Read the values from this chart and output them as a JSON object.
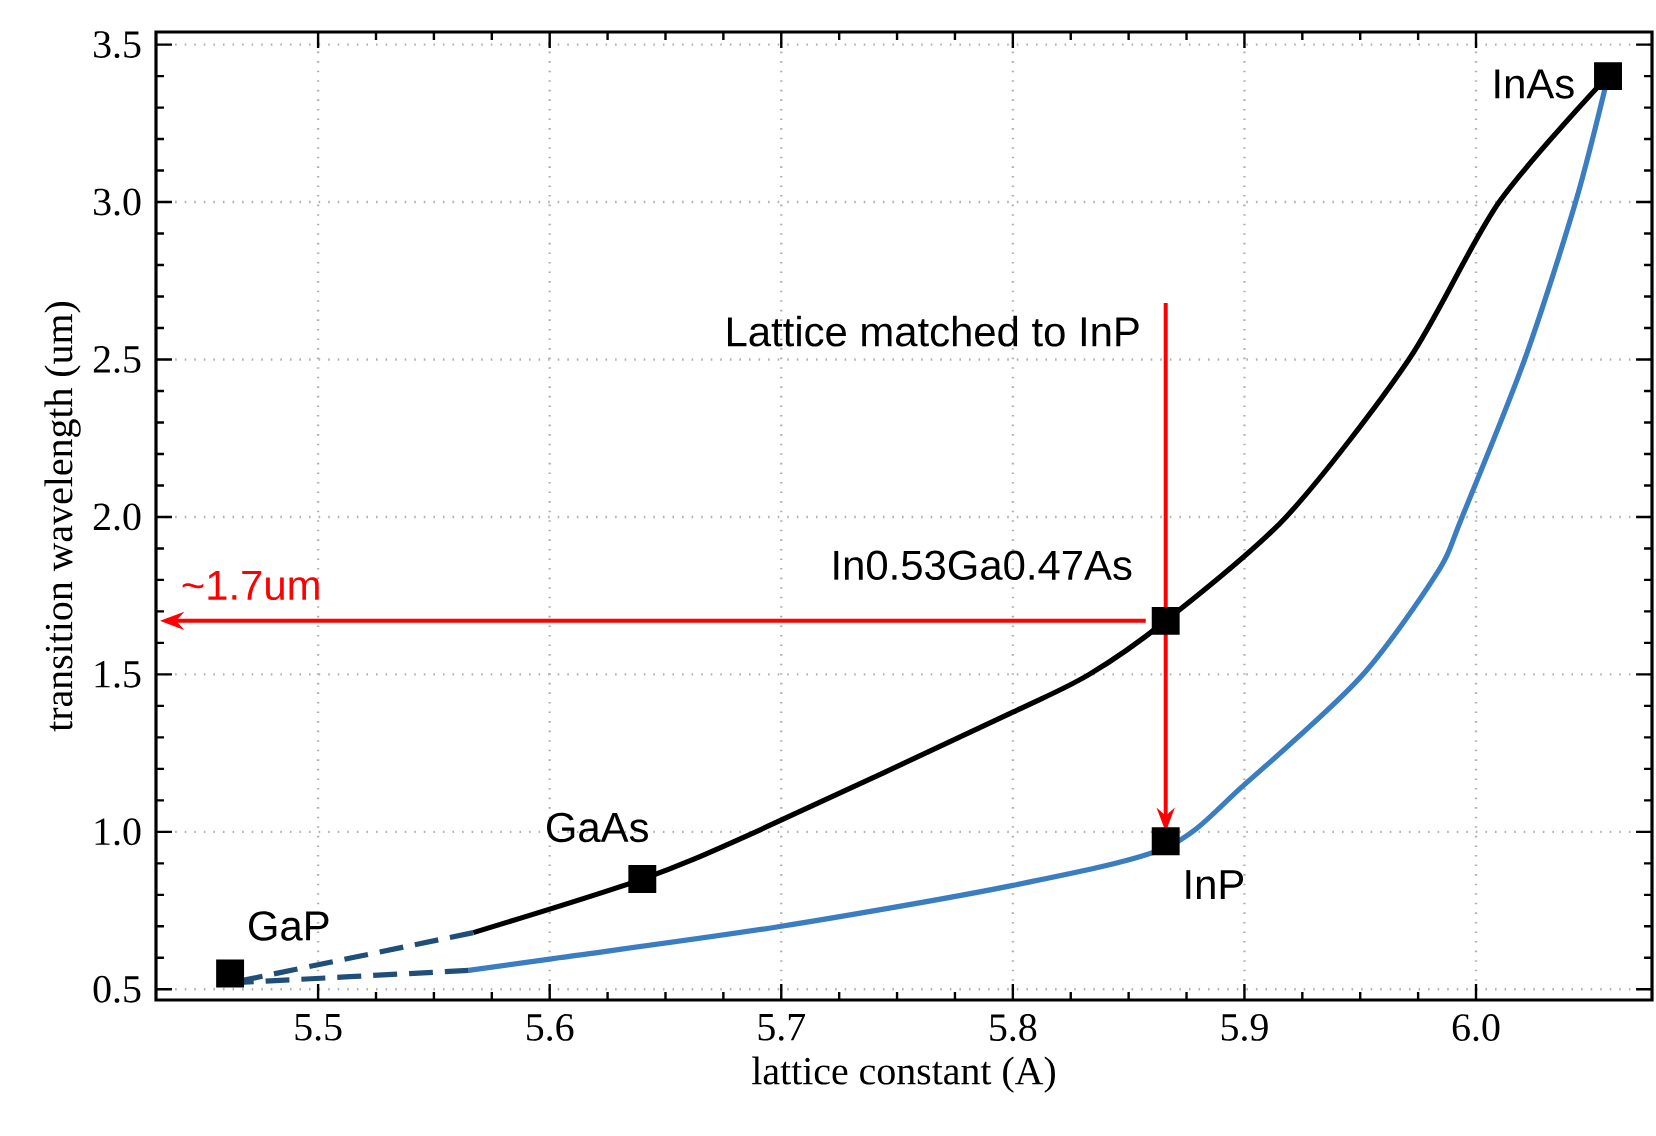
{
  "chart_data": {
    "type": "line",
    "xlabel": "lattice constant (A)",
    "ylabel": "transition wavelength (um)",
    "xlim": [
      5.43,
      6.076
    ],
    "ylim": [
      0.466,
      3.54
    ],
    "xticks": [
      5.5,
      5.6,
      5.7,
      5.8,
      5.9,
      {
        "value": 6.0,
        "label": "6.0"
      }
    ],
    "yticks": [
      0.5,
      {
        "value": 1.0,
        "label": "1.0"
      },
      1.5,
      {
        "value": 2.0,
        "label": "2.0"
      },
      2.5,
      {
        "value": 3.0,
        "label": "3.0"
      },
      3.5
    ],
    "grid": true,
    "series": [
      {
        "color": "#000000",
        "line_style": "solid",
        "marker": "none",
        "x": [
          5.567,
          5.64,
          5.689,
          5.8,
          5.833,
          5.866,
          5.918,
          5.971,
          6.01,
          6.057
        ],
        "values": [
          0.68,
          0.85,
          1.0,
          1.38,
          1.5,
          1.67,
          2.0,
          2.5,
          3.0,
          3.4
        ]
      },
      {
        "color": "#3a7dc0",
        "line_style": "solid",
        "marker": "none",
        "x": [
          5.565,
          5.604,
          5.7,
          5.8,
          5.866,
          5.9,
          5.95,
          5.983,
          5.994,
          6.021,
          6.043,
          6.057
        ],
        "values": [
          0.56,
          0.6,
          0.7,
          0.83,
          0.95,
          1.15,
          1.49,
          1.82,
          2.0,
          2.5,
          3.0,
          3.4
        ]
      },
      {
        "color": "#1f4e79",
        "line_style": "dashed",
        "marker": "none",
        "x": [
          5.567,
          5.462
        ],
        "values": [
          0.68,
          0.52
        ]
      },
      {
        "color": "#1f4e79",
        "line_style": "dashed",
        "marker": "none",
        "x": [
          5.565,
          5.462
        ],
        "values": [
          0.56,
          0.52
        ]
      },
      {
        "type": "scatter",
        "color": "#000000",
        "marker": "square",
        "x": [
          5.462,
          5.64,
          5.866,
          5.866,
          6.057
        ],
        "values": [
          0.55,
          0.85,
          1.67,
          0.97,
          3.4
        ]
      }
    ],
    "annotations": [
      {
        "text": "GaP",
        "x": 5.462,
        "y": 0.55
      },
      {
        "text": "GaAs",
        "x": 5.64,
        "y": 0.85
      },
      {
        "text": "In0.53Ga0.47As",
        "x": 5.866,
        "y": 1.67
      },
      {
        "text": "InP",
        "x": 5.866,
        "y": 0.97
      },
      {
        "text": "InAs",
        "x": 6.057,
        "y": 3.4
      },
      {
        "text": "Lattice matched to InP",
        "x": 5.866,
        "y": 1.0
      },
      "~1.7um"
    ]
  }
}
